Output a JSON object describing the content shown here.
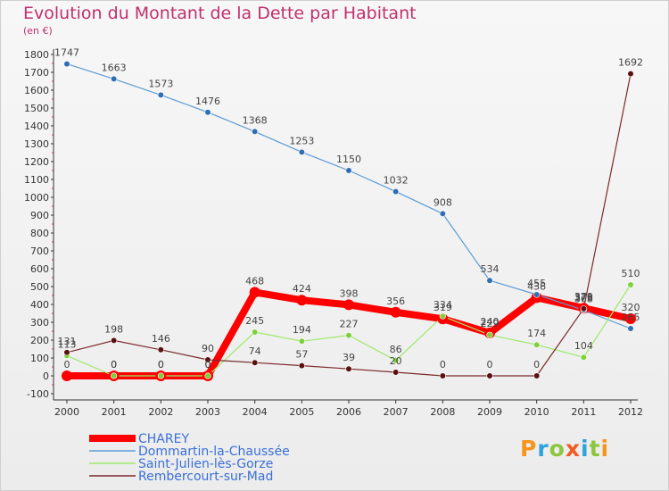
{
  "chart_data": {
    "type": "line",
    "title": "Evolution du Montant de la Dette par Habitant",
    "subtitle": "(en €)",
    "x": [
      "2000",
      "2001",
      "2002",
      "2003",
      "2004",
      "2005",
      "2006",
      "2007",
      "2008",
      "2009",
      "2010",
      "2011",
      "2012"
    ],
    "ylim": [
      -100,
      1800
    ],
    "yticks": [
      -100,
      0,
      100,
      200,
      300,
      400,
      500,
      600,
      700,
      800,
      900,
      1000,
      1100,
      1200,
      1300,
      1400,
      1500,
      1600,
      1700,
      1800
    ],
    "grid": false,
    "legend_position": "bottom-left",
    "series": [
      {
        "name": "CHAREY",
        "color": "#ff0000",
        "marker": "#ff0000",
        "values": [
          0,
          0,
          0,
          0,
          468,
          424,
          398,
          356,
          319,
          240,
          438,
          379,
          320
        ]
      },
      {
        "name": "Dommartin-la-Chaussée",
        "color": "#5b9bd5",
        "marker": "#2f6db5",
        "values": [
          1747,
          1663,
          1573,
          1476,
          1368,
          1253,
          1150,
          1032,
          908,
          534,
          455,
          368,
          265
        ]
      },
      {
        "name": "Saint-Julien-lès-Gorze",
        "color": "#9ee86a",
        "marker": "#7fd03b",
        "values": [
          113,
          0,
          0,
          0,
          245,
          194,
          227,
          86,
          334,
          229,
          174,
          104,
          510
        ]
      },
      {
        "name": "Rembercourt-sur-Mad",
        "color": "#7a2a2a",
        "marker": "#5a1010",
        "values": [
          131,
          198,
          146,
          90,
          74,
          57,
          39,
          20,
          0,
          0,
          0,
          376,
          1692
        ]
      }
    ]
  },
  "logo": {
    "letters": [
      "P",
      "r",
      "o",
      "x",
      "i",
      "t",
      "i"
    ],
    "colors": [
      "#f7941d",
      "#2ea3dc",
      "#8cc63f",
      "#f15a24",
      "#2ea3dc",
      "#8cc63f",
      "#f7941d"
    ]
  }
}
